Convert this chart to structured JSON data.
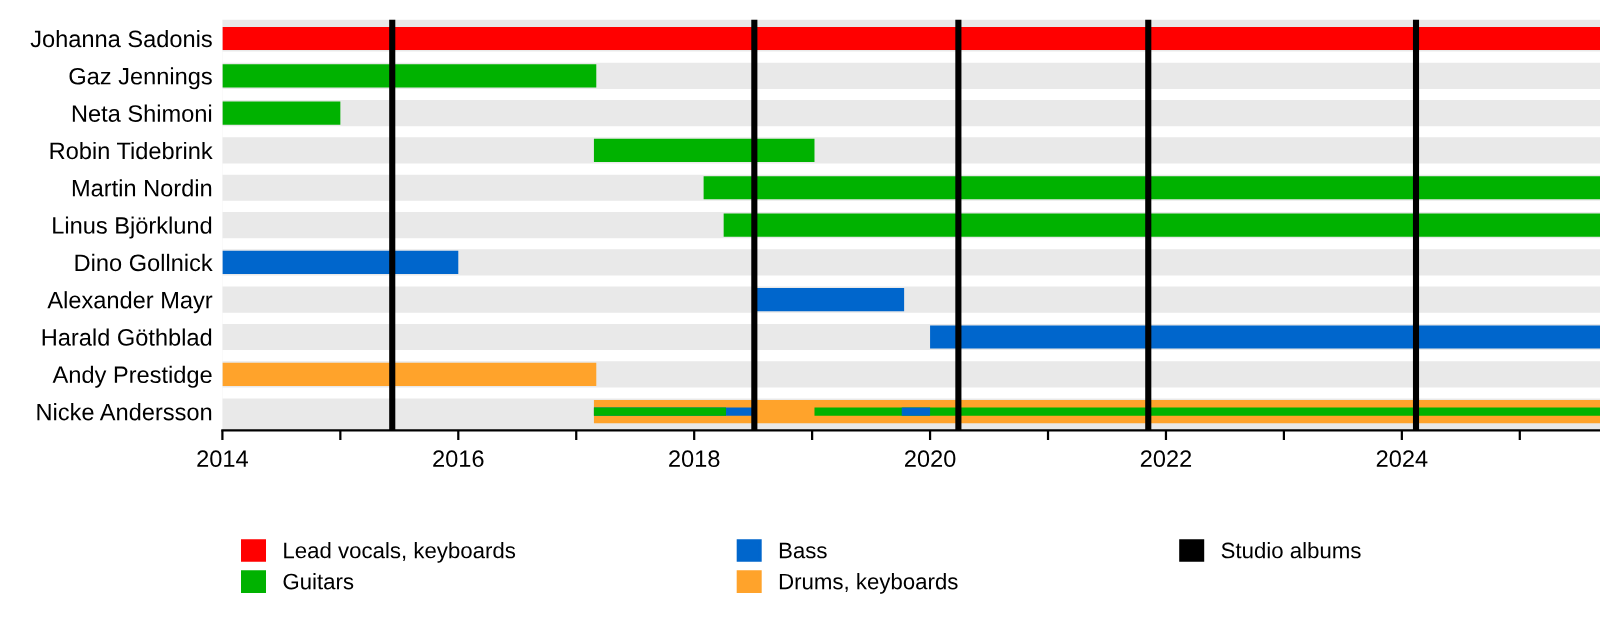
{
  "chart_data": {
    "type": "bar",
    "orientation": "horizontal",
    "categories": [
      "Johanna Sadonis",
      "Gaz Jennings",
      "Neta Shimoni",
      "Robin Tidebrink",
      "Martin Nordin",
      "Linus Björklund",
      "Dino Gollnick",
      "Alexander Mayr",
      "Harald Göthblad",
      "Andy Prestidge",
      "Nicke Andersson"
    ],
    "series": [
      {
        "name": "Lead vocals, keyboards",
        "color": "#ff0000",
        "values": [
          11.68,
          null,
          null,
          null,
          null,
          null,
          null,
          null,
          null,
          null,
          null
        ],
        "base": [
          2014,
          null,
          null,
          null,
          null,
          null,
          null,
          null,
          null,
          null,
          null
        ]
      },
      {
        "name": "Guitars",
        "color": "#00b200",
        "values": [
          null,
          3.17,
          1.0,
          1.87,
          7.6,
          7.43,
          null,
          null,
          null,
          null,
          null
        ],
        "base": [
          null,
          2014,
          2014,
          2017.15,
          2018.08,
          2018.25,
          null,
          null,
          null,
          null,
          null
        ]
      },
      {
        "name": "Bass",
        "color": "#0066cc",
        "values": [
          null,
          null,
          null,
          null,
          null,
          null,
          2.0,
          1.28,
          5.68,
          null,
          null
        ],
        "base": [
          null,
          null,
          null,
          null,
          null,
          null,
          2014,
          2018.5,
          2020,
          null,
          null
        ]
      },
      {
        "name": "Drums, keyboards",
        "color": "#ffa32b",
        "values": [
          null,
          null,
          null,
          null,
          null,
          null,
          null,
          null,
          null,
          3.17,
          8.53
        ],
        "base": [
          null,
          null,
          null,
          null,
          null,
          null,
          null,
          null,
          null,
          2014,
          2017.15
        ]
      },
      {
        "color": "#0066cc",
        "values": [
          null,
          null,
          null,
          null,
          null,
          null,
          null,
          null,
          null,
          null,
          1.35
        ],
        "base": [
          null,
          null,
          null,
          null,
          null,
          null,
          null,
          null,
          null,
          null,
          2017.15
        ]
      },
      {
        "color": "#00b200",
        "values": [
          null,
          null,
          null,
          null,
          null,
          null,
          null,
          null,
          null,
          null,
          1.12
        ],
        "base": [
          null,
          null,
          null,
          null,
          null,
          null,
          null,
          null,
          null,
          null,
          2017.15
        ]
      },
      {
        "color": "#00b200",
        "values": [
          null,
          null,
          null,
          null,
          null,
          null,
          null,
          null,
          null,
          null,
          6.66
        ],
        "base": [
          null,
          null,
          null,
          null,
          null,
          null,
          null,
          null,
          null,
          null,
          2019.02
        ]
      },
      {
        "color": "#0066cc",
        "values": [
          null,
          null,
          null,
          null,
          null,
          null,
          null,
          null,
          null,
          null,
          0.24
        ],
        "base": [
          null,
          null,
          null,
          null,
          null,
          null,
          null,
          null,
          null,
          null,
          2019.76
        ]
      }
    ],
    "xlim": [
      2014,
      2025.68
    ],
    "xticks": [
      2014,
      {
        "value": 2015,
        "label": null
      },
      2016,
      {
        "value": 2017,
        "label": null
      },
      2018,
      {
        "value": 2019,
        "label": null
      },
      2020,
      {
        "value": 2021,
        "label": null
      },
      2022,
      {
        "value": 2023,
        "label": null
      },
      2024,
      {
        "value": 2025,
        "label": null
      }
    ],
    "ref_lines": [
      {
        "axis": "x",
        "value": 2015.44,
        "label": "Studio albums",
        "color": "#000000"
      },
      {
        "axis": "x",
        "value": 2018.51,
        "color": "#000000"
      },
      {
        "axis": "x",
        "value": 2020.24,
        "color": "#000000"
      },
      {
        "axis": "x",
        "value": 2021.85,
        "color": "#000000"
      },
      {
        "axis": "x",
        "value": 2024.12,
        "color": "#000000"
      }
    ],
    "legend": "bottom",
    "grid": false
  }
}
